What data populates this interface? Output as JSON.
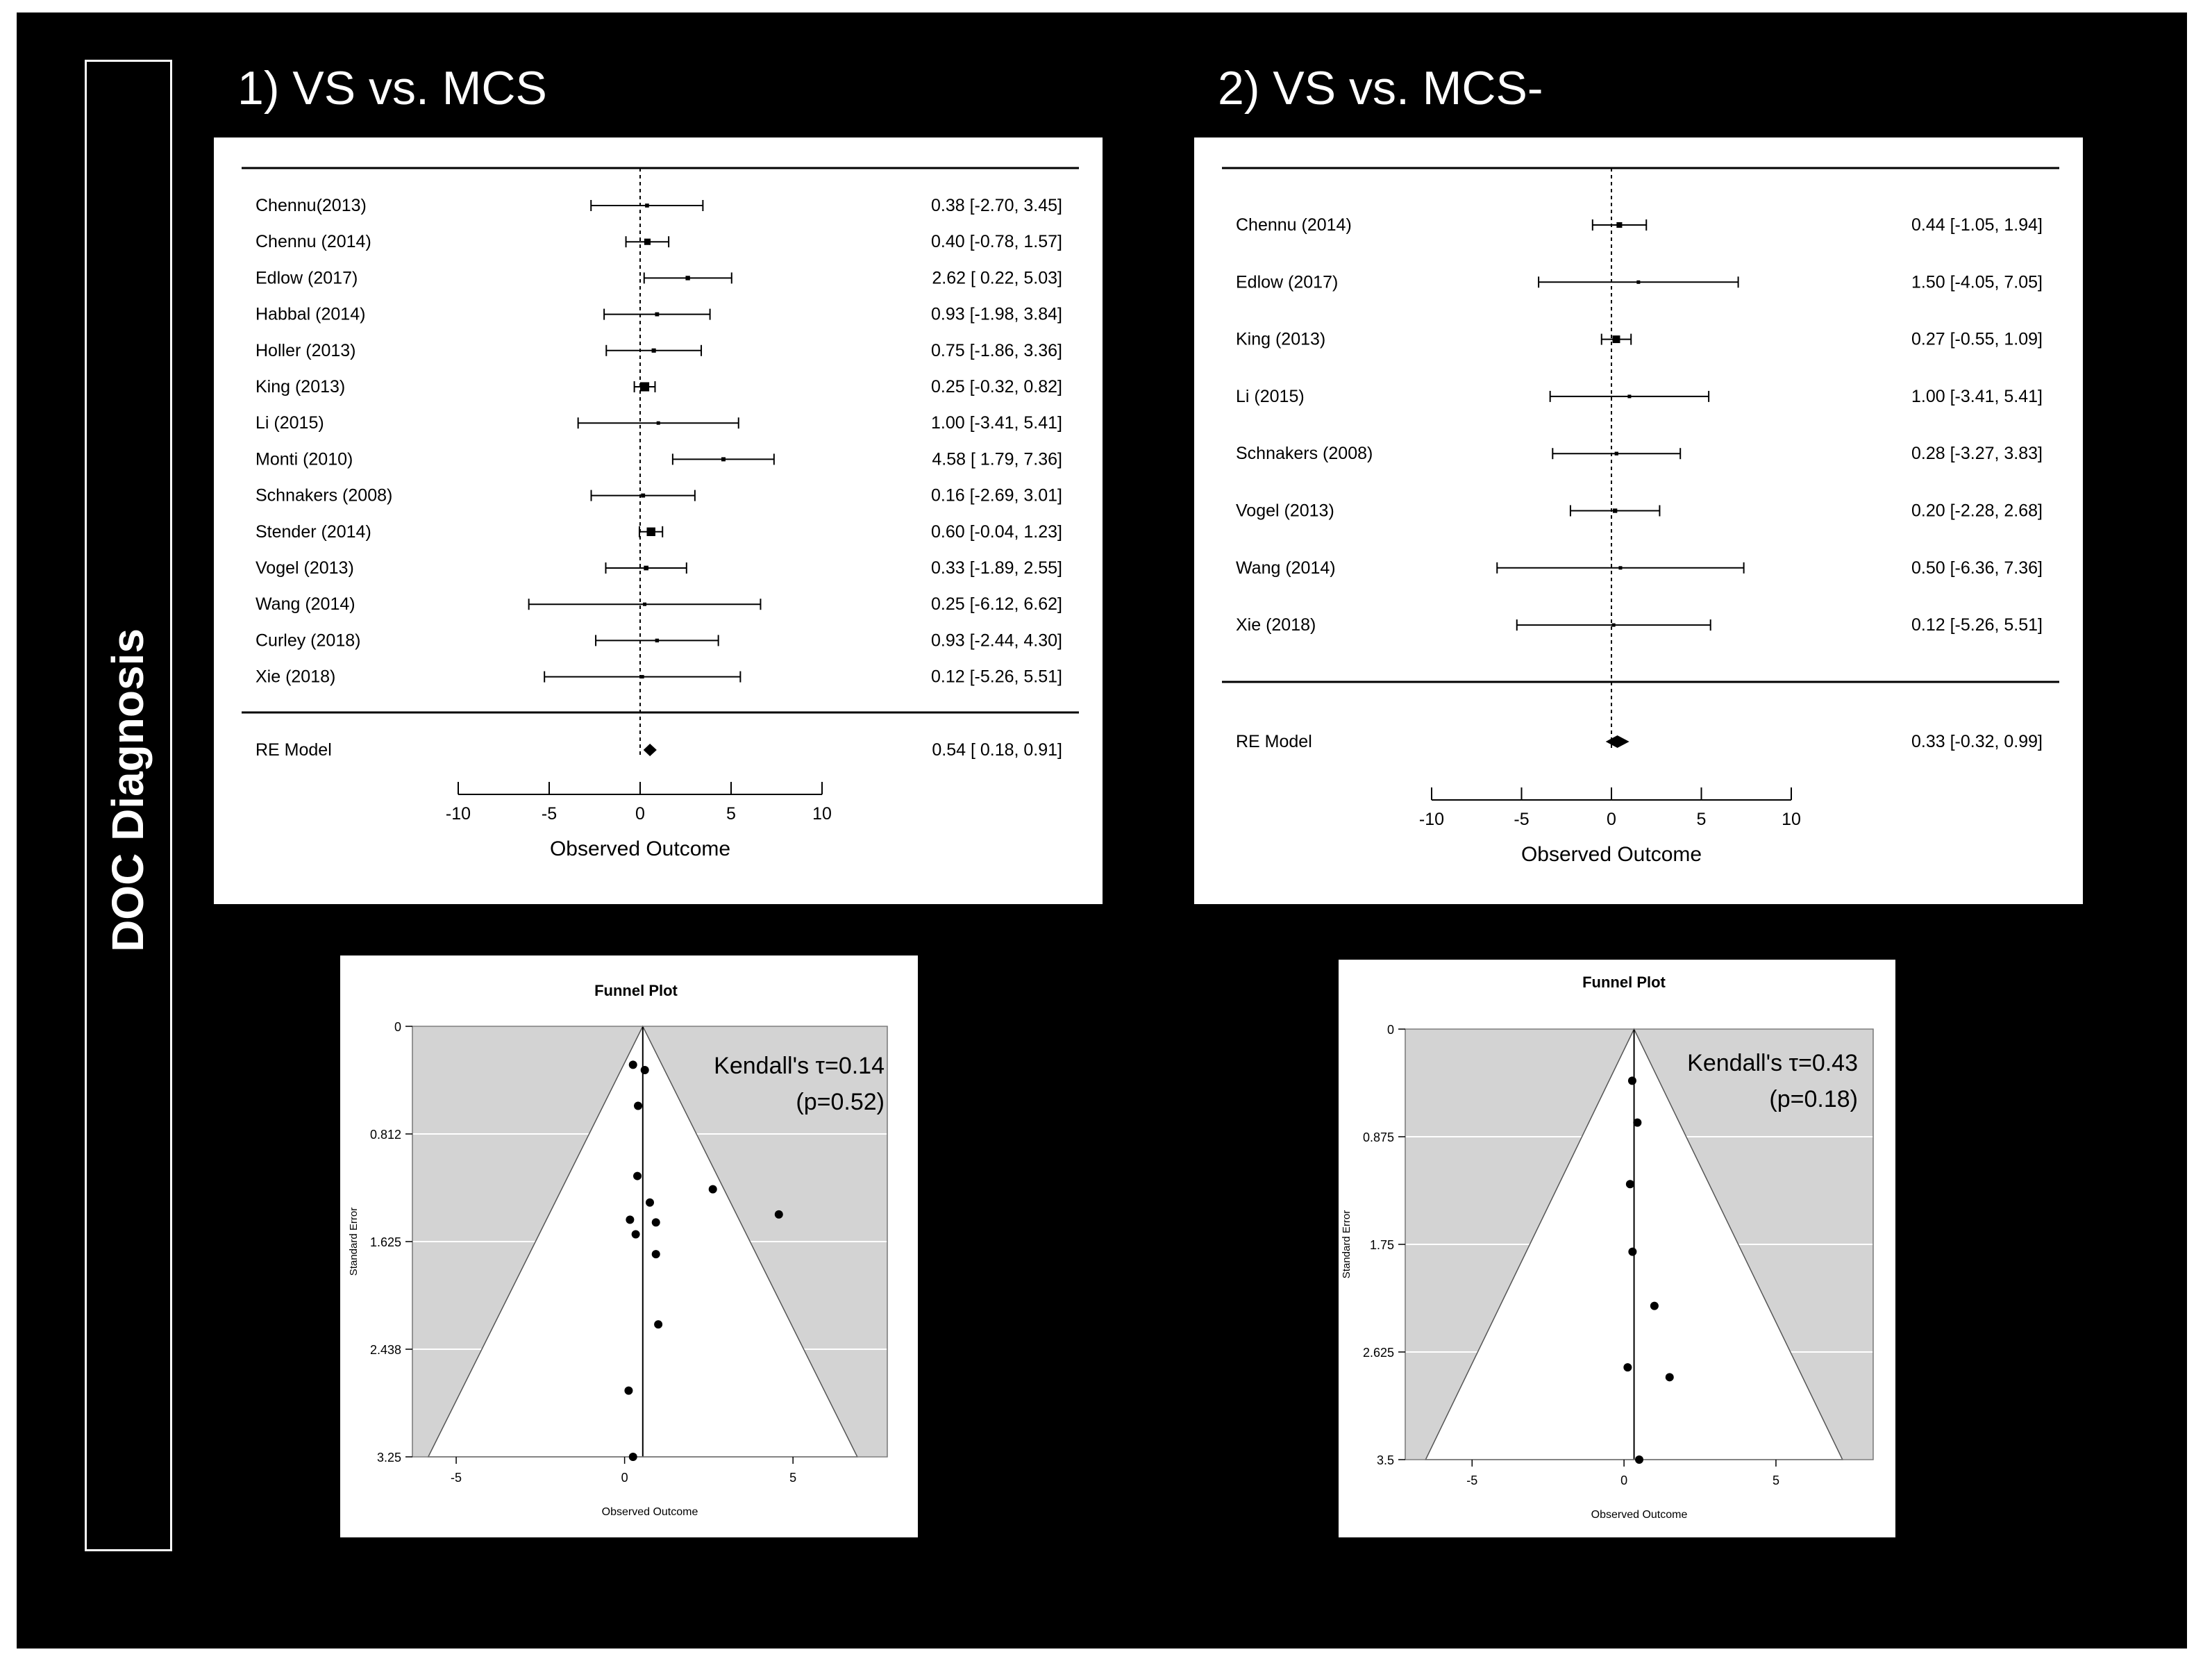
{
  "sidebar": {
    "label": "DOC Diagnosis"
  },
  "sections": [
    {
      "title": "1) VS vs. MCS"
    },
    {
      "title": "2) VS vs. MCS-"
    }
  ],
  "chart_data": [
    {
      "type": "forest",
      "section": "1) VS vs. MCS",
      "xlabel": "Observed Outcome",
      "xlim": [
        -10,
        10
      ],
      "xticks": [
        -10,
        -5,
        0,
        5,
        10
      ],
      "studies": [
        {
          "name": "Chennu(2013)",
          "est": 0.38,
          "lo": -2.7,
          "hi": 3.45,
          "label": "0.38 [-2.70, 3.45]"
        },
        {
          "name": "Chennu (2014)",
          "est": 0.4,
          "lo": -0.78,
          "hi": 1.57,
          "label": "0.40 [-0.78, 1.57]"
        },
        {
          "name": "Edlow (2017)",
          "est": 2.62,
          "lo": 0.22,
          "hi": 5.03,
          "label": "2.62 [ 0.22, 5.03]"
        },
        {
          "name": "Habbal (2014)",
          "est": 0.93,
          "lo": -1.98,
          "hi": 3.84,
          "label": "0.93 [-1.98, 3.84]"
        },
        {
          "name": "Holler (2013)",
          "est": 0.75,
          "lo": -1.86,
          "hi": 3.36,
          "label": "0.75 [-1.86, 3.36]"
        },
        {
          "name": "King (2013)",
          "est": 0.25,
          "lo": -0.32,
          "hi": 0.82,
          "label": "0.25 [-0.32, 0.82]"
        },
        {
          "name": "Li (2015)",
          "est": 1.0,
          "lo": -3.41,
          "hi": 5.41,
          "label": "1.00 [-3.41, 5.41]"
        },
        {
          "name": "Monti (2010)",
          "est": 4.58,
          "lo": 1.79,
          "hi": 7.36,
          "label": "4.58 [ 1.79, 7.36]"
        },
        {
          "name": "Schnakers (2008)",
          "est": 0.16,
          "lo": -2.69,
          "hi": 3.01,
          "label": "0.16 [-2.69, 3.01]"
        },
        {
          "name": "Stender (2014)",
          "est": 0.6,
          "lo": -0.04,
          "hi": 1.23,
          "label": "0.60 [-0.04, 1.23]"
        },
        {
          "name": "Vogel (2013)",
          "est": 0.33,
          "lo": -1.89,
          "hi": 2.55,
          "label": "0.33 [-1.89, 2.55]"
        },
        {
          "name": "Wang (2014)",
          "est": 0.25,
          "lo": -6.12,
          "hi": 6.62,
          "label": "0.25 [-6.12, 6.62]"
        },
        {
          "name": "Curley (2018)",
          "est": 0.93,
          "lo": -2.44,
          "hi": 4.3,
          "label": "0.93 [-2.44, 4.30]"
        },
        {
          "name": "Xie (2018)",
          "est": 0.12,
          "lo": -5.26,
          "hi": 5.51,
          "label": "0.12 [-5.26, 5.51]"
        }
      ],
      "summary": {
        "name": "RE Model",
        "est": 0.54,
        "lo": 0.18,
        "hi": 0.91,
        "label": "0.54 [ 0.18, 0.91]"
      }
    },
    {
      "type": "forest",
      "section": "2) VS vs. MCS-",
      "xlabel": "Observed Outcome",
      "xlim": [
        -10,
        10
      ],
      "xticks": [
        -10,
        -5,
        0,
        5,
        10
      ],
      "studies": [
        {
          "name": "Chennu (2014)",
          "est": 0.44,
          "lo": -1.05,
          "hi": 1.94,
          "label": "0.44 [-1.05, 1.94]"
        },
        {
          "name": "Edlow (2017)",
          "est": 1.5,
          "lo": -4.05,
          "hi": 7.05,
          "label": "1.50 [-4.05, 7.05]"
        },
        {
          "name": "King (2013)",
          "est": 0.27,
          "lo": -0.55,
          "hi": 1.09,
          "label": "0.27 [-0.55, 1.09]"
        },
        {
          "name": "Li (2015)",
          "est": 1.0,
          "lo": -3.41,
          "hi": 5.41,
          "label": "1.00 [-3.41, 5.41]"
        },
        {
          "name": "Schnakers (2008)",
          "est": 0.28,
          "lo": -3.27,
          "hi": 3.83,
          "label": "0.28 [-3.27, 3.83]"
        },
        {
          "name": "Vogel (2013)",
          "est": 0.2,
          "lo": -2.28,
          "hi": 2.68,
          "label": "0.20 [-2.28, 2.68]"
        },
        {
          "name": "Wang (2014)",
          "est": 0.5,
          "lo": -6.36,
          "hi": 7.36,
          "label": "0.50 [-6.36, 7.36]"
        },
        {
          "name": "Xie (2018)",
          "est": 0.12,
          "lo": -5.26,
          "hi": 5.51,
          "label": "0.12 [-5.26, 5.51]"
        }
      ],
      "summary": {
        "name": "RE Model",
        "est": 0.33,
        "lo": -0.32,
        "hi": 0.99,
        "label": "0.33 [-0.32, 0.99]"
      }
    },
    {
      "type": "scatter",
      "section": "1) VS vs. MCS",
      "title": "Funnel Plot",
      "xlabel": "Observed Outcome",
      "ylabel": "Standard Error",
      "xlim": [
        -6.3,
        7.8
      ],
      "xticks": [
        -5,
        0,
        5
      ],
      "ylim": [
        3.25,
        0
      ],
      "yticks": [
        "0",
        "0.812",
        "1.625",
        "2.438",
        "3.25"
      ],
      "center": 0.54,
      "annotation": [
        "Kendall's τ=0.14",
        "(p=0.52)"
      ],
      "points": [
        {
          "x": 0.25,
          "y": 0.29
        },
        {
          "x": 0.6,
          "y": 0.33
        },
        {
          "x": 0.4,
          "y": 0.6
        },
        {
          "x": 0.38,
          "y": 1.13
        },
        {
          "x": 2.62,
          "y": 1.23
        },
        {
          "x": 4.58,
          "y": 1.42
        },
        {
          "x": 0.75,
          "y": 1.33
        },
        {
          "x": 0.16,
          "y": 1.46
        },
        {
          "x": 0.93,
          "y": 1.48
        },
        {
          "x": 0.33,
          "y": 1.57
        },
        {
          "x": 0.93,
          "y": 1.72
        },
        {
          "x": 1.0,
          "y": 2.25
        },
        {
          "x": 0.12,
          "y": 2.75
        },
        {
          "x": 0.25,
          "y": 3.25
        }
      ]
    },
    {
      "type": "scatter",
      "section": "2) VS vs. MCS-",
      "title": "Funnel Plot",
      "xlabel": "Observed Outcome",
      "ylabel": "Standard Error",
      "xlim": [
        -7.2,
        8.2
      ],
      "xticks": [
        -5,
        0,
        5
      ],
      "ylim": [
        3.5,
        0
      ],
      "yticks": [
        "0",
        "0.875",
        "1.75",
        "2.625",
        "3.5"
      ],
      "center": 0.33,
      "annotation": [
        "Kendall's τ=0.43",
        "(p=0.18)"
      ],
      "points": [
        {
          "x": 0.27,
          "y": 0.42
        },
        {
          "x": 0.44,
          "y": 0.76
        },
        {
          "x": 0.2,
          "y": 1.26
        },
        {
          "x": 0.28,
          "y": 1.81
        },
        {
          "x": 1.0,
          "y": 2.25
        },
        {
          "x": 0.12,
          "y": 2.75
        },
        {
          "x": 1.5,
          "y": 2.83
        },
        {
          "x": 0.5,
          "y": 3.5
        }
      ]
    }
  ]
}
